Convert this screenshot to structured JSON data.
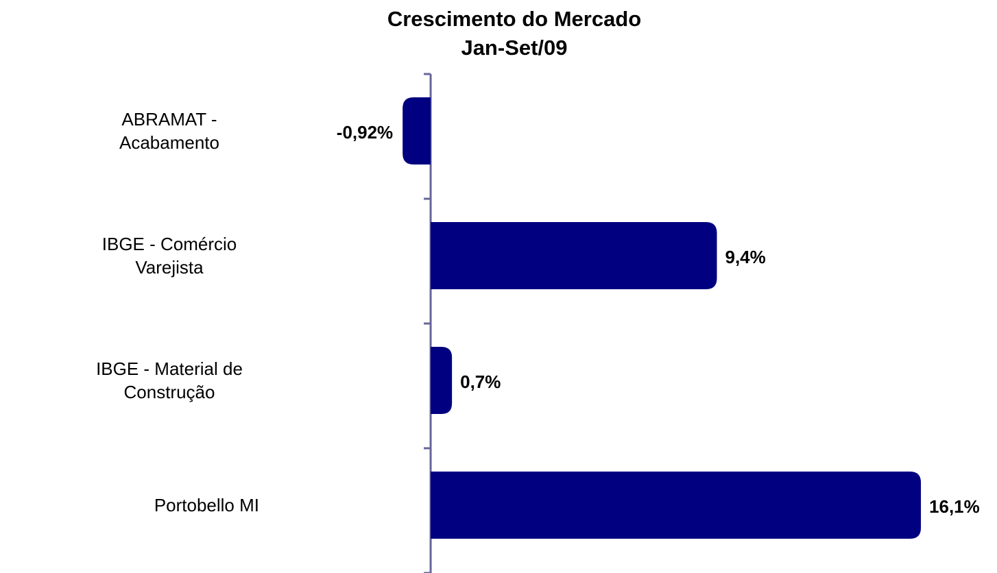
{
  "chart_data": {
    "type": "hbar",
    "title": "Crescimento do Mercado",
    "subtitle": "Jan-Set/09",
    "categories": [
      "ABRAMAT - Acabamento",
      "IBGE - Comércio Varejista",
      "IBGE - Material de Construção",
      "Portobello MI"
    ],
    "values": [
      -0.92,
      9.4,
      0.7,
      16.1
    ],
    "value_labels": [
      "-0,92%",
      "9,4%",
      "0,7%",
      "16,1%"
    ],
    "color": "#000080",
    "xlim": [
      -5,
      17
    ]
  }
}
